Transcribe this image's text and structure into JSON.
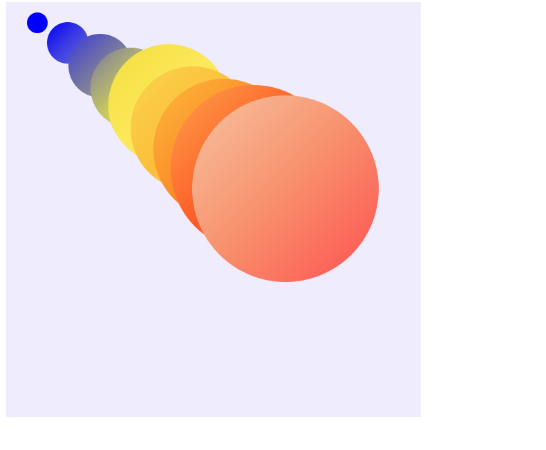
{
  "canvas": {
    "background": "#eeecfd"
  },
  "circles": [
    {
      "fill": "solid",
      "colors": [
        "#0000ff"
      ]
    },
    {
      "fill": "gradient",
      "colors": [
        "#0000f6",
        "#3c3ce2",
        "#6767d8"
      ]
    },
    {
      "fill": "gradient",
      "colors": [
        "#3a3ad6",
        "#7878a0",
        "#a8a890"
      ]
    },
    {
      "fill": "gradient",
      "colors": [
        "#7878a0",
        "#c8c860",
        "#e8e880"
      ]
    },
    {
      "fill": "gradient",
      "colors": [
        "#b8b860",
        "#f6f640",
        "#f0e860"
      ]
    },
    {
      "fill": "gradient",
      "colors": [
        "#f2e040",
        "#fde85a",
        "#f8d870"
      ]
    },
    {
      "fill": "gradient",
      "colors": [
        "#fbd34b",
        "#fbbf3a",
        "#f9c98a"
      ]
    },
    {
      "fill": "gradient",
      "colors": [
        "#fcb83a",
        "#fc8a2a",
        "#fbbf85"
      ]
    },
    {
      "fill": "gradient",
      "colors": [
        "#fca24a",
        "#ff5a26",
        "#f9b87c"
      ]
    },
    {
      "fill": "gradient",
      "colors": [
        "#f6c3a0",
        "#f8906c",
        "#fe5050"
      ]
    }
  ]
}
